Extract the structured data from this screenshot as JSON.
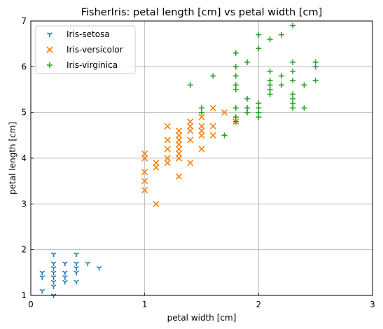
{
  "chart_data": {
    "type": "scatter",
    "title": "FisherIris: petal length [cm] vs petal width [cm]",
    "xlabel": "petal width [cm]",
    "ylabel": "petal length [cm]",
    "xlim": [
      0,
      3
    ],
    "ylim": [
      1,
      7
    ],
    "xticks": [
      0,
      1,
      2,
      3
    ],
    "yticks": [
      1,
      2,
      3,
      4,
      5,
      6,
      7
    ],
    "grid": true,
    "legend_position": "top-left",
    "series": [
      {
        "name": "Iris-setosa",
        "marker": "tri_down",
        "color": "#1f77b4",
        "points": [
          [
            0.1,
            1.1
          ],
          [
            0.1,
            1.4
          ],
          [
            0.1,
            1.5
          ],
          [
            0.2,
            1.0
          ],
          [
            0.2,
            1.2
          ],
          [
            0.2,
            1.3
          ],
          [
            0.2,
            1.4
          ],
          [
            0.2,
            1.5
          ],
          [
            0.2,
            1.6
          ],
          [
            0.2,
            1.7
          ],
          [
            0.2,
            1.9
          ],
          [
            0.3,
            1.3
          ],
          [
            0.3,
            1.4
          ],
          [
            0.3,
            1.5
          ],
          [
            0.3,
            1.7
          ],
          [
            0.4,
            1.3
          ],
          [
            0.4,
            1.5
          ],
          [
            0.4,
            1.6
          ],
          [
            0.4,
            1.7
          ],
          [
            0.4,
            1.9
          ],
          [
            0.5,
            1.7
          ],
          [
            0.6,
            1.6
          ]
        ]
      },
      {
        "name": "Iris-versicolor",
        "marker": "x",
        "color": "#ff7f0e",
        "points": [
          [
            1.0,
            3.3
          ],
          [
            1.0,
            3.5
          ],
          [
            1.0,
            3.7
          ],
          [
            1.0,
            4.0
          ],
          [
            1.0,
            4.1
          ],
          [
            1.1,
            3.0
          ],
          [
            1.1,
            3.8
          ],
          [
            1.1,
            3.9
          ],
          [
            1.2,
            3.9
          ],
          [
            1.2,
            4.0
          ],
          [
            1.2,
            4.2
          ],
          [
            1.2,
            4.4
          ],
          [
            1.2,
            4.7
          ],
          [
            1.3,
            3.6
          ],
          [
            1.3,
            4.0
          ],
          [
            1.3,
            4.1
          ],
          [
            1.3,
            4.2
          ],
          [
            1.3,
            4.3
          ],
          [
            1.3,
            4.4
          ],
          [
            1.3,
            4.5
          ],
          [
            1.3,
            4.6
          ],
          [
            1.4,
            3.9
          ],
          [
            1.4,
            4.4
          ],
          [
            1.4,
            4.6
          ],
          [
            1.4,
            4.7
          ],
          [
            1.4,
            4.8
          ],
          [
            1.5,
            4.2
          ],
          [
            1.5,
            4.5
          ],
          [
            1.5,
            4.6
          ],
          [
            1.5,
            4.7
          ],
          [
            1.5,
            4.9
          ],
          [
            1.6,
            4.5
          ],
          [
            1.6,
            4.7
          ],
          [
            1.6,
            5.1
          ],
          [
            1.7,
            5.0
          ],
          [
            1.8,
            4.8
          ]
        ]
      },
      {
        "name": "Iris-virginica",
        "marker": "plus",
        "color": "#2ca02c",
        "points": [
          [
            1.4,
            5.6
          ],
          [
            1.5,
            5.0
          ],
          [
            1.5,
            5.1
          ],
          [
            1.6,
            5.8
          ],
          [
            1.7,
            4.5
          ],
          [
            1.8,
            4.8
          ],
          [
            1.8,
            4.9
          ],
          [
            1.8,
            5.1
          ],
          [
            1.8,
            5.5
          ],
          [
            1.8,
            5.6
          ],
          [
            1.8,
            5.8
          ],
          [
            1.8,
            6.0
          ],
          [
            1.8,
            6.3
          ],
          [
            1.9,
            5.0
          ],
          [
            1.9,
            5.1
          ],
          [
            1.9,
            5.3
          ],
          [
            1.9,
            6.1
          ],
          [
            2.0,
            4.9
          ],
          [
            2.0,
            5.0
          ],
          [
            2.0,
            5.1
          ],
          [
            2.0,
            5.2
          ],
          [
            2.0,
            6.4
          ],
          [
            2.0,
            6.7
          ],
          [
            2.1,
            5.4
          ],
          [
            2.1,
            5.5
          ],
          [
            2.1,
            5.6
          ],
          [
            2.1,
            5.7
          ],
          [
            2.1,
            5.9
          ],
          [
            2.1,
            6.6
          ],
          [
            2.2,
            5.6
          ],
          [
            2.2,
            5.8
          ],
          [
            2.2,
            6.7
          ],
          [
            2.3,
            5.1
          ],
          [
            2.3,
            5.2
          ],
          [
            2.3,
            5.3
          ],
          [
            2.3,
            5.4
          ],
          [
            2.3,
            5.7
          ],
          [
            2.3,
            5.9
          ],
          [
            2.3,
            6.1
          ],
          [
            2.3,
            6.9
          ],
          [
            2.4,
            5.1
          ],
          [
            2.4,
            5.6
          ],
          [
            2.5,
            5.7
          ],
          [
            2.5,
            6.0
          ],
          [
            2.5,
            6.1
          ]
        ]
      }
    ]
  }
}
